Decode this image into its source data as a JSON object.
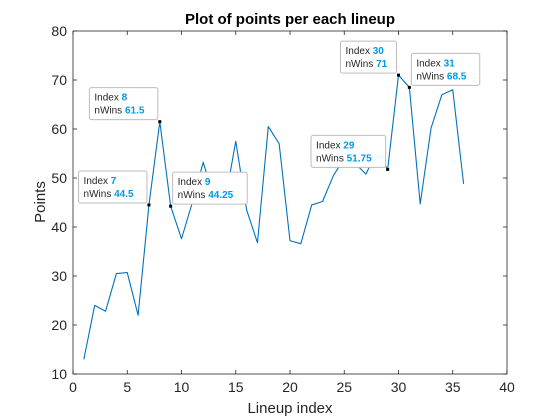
{
  "chart_data": {
    "type": "line",
    "title": "Plot of points per each lineup",
    "xlabel": "Lineup index",
    "ylabel": "Points",
    "xlim": [
      0,
      40
    ],
    "ylim": [
      10,
      80
    ],
    "xticks": [
      0,
      5,
      10,
      15,
      20,
      25,
      30,
      35,
      40
    ],
    "yticks": [
      10,
      20,
      30,
      40,
      50,
      60,
      70,
      80
    ],
    "grid": false,
    "box": true,
    "series": [
      {
        "color": "#0072BD",
        "x": [
          1,
          2,
          3,
          4,
          5,
          6,
          7,
          8,
          9,
          10,
          11,
          12,
          13,
          14,
          15,
          16,
          17,
          18,
          19,
          20,
          21,
          22,
          23,
          24,
          25,
          26,
          27,
          28,
          29,
          30,
          31,
          32,
          33,
          34,
          35,
          36
        ],
        "y": [
          13,
          24,
          22.8,
          30.5,
          30.7,
          22,
          44.5,
          61.5,
          44.25,
          37.6,
          45,
          53.2,
          46,
          45,
          57.5,
          43.5,
          36.8,
          60.5,
          57,
          37.2,
          36.6,
          44.5,
          45.2,
          50.5,
          54,
          53,
          50.8,
          55.5,
          51.75,
          71,
          68.5,
          44.7,
          60.2,
          67,
          68,
          48.8
        ]
      }
    ],
    "datatips": [
      {
        "index": 7,
        "value": "44.5",
        "index_label": "Index",
        "value_label": "nWins",
        "index_text": "7",
        "position": "upper-left"
      },
      {
        "index": 8,
        "value": "61.5",
        "index_label": "Index",
        "value_label": "nWins",
        "index_text": "8",
        "position": "upper-left"
      },
      {
        "index": 9,
        "value": "44.25",
        "index_label": "Index",
        "value_label": "nWins",
        "index_text": "9",
        "position": "upper-right"
      },
      {
        "index": 29,
        "value": "51.75",
        "index_label": "Index",
        "value_label": "nWins",
        "index_text": "29",
        "position": "upper-left"
      },
      {
        "index": 30,
        "value": "71",
        "index_label": "Index",
        "value_label": "nWins",
        "index_text": "30",
        "position": "upper-left"
      },
      {
        "index": 31,
        "value": "68.5",
        "index_label": "Index",
        "value_label": "nWins",
        "index_text": "31",
        "position": "upper-right"
      }
    ],
    "colors": {
      "line": "#0072BD",
      "datatip_value": "#0098E8",
      "axes": "#262626"
    }
  }
}
